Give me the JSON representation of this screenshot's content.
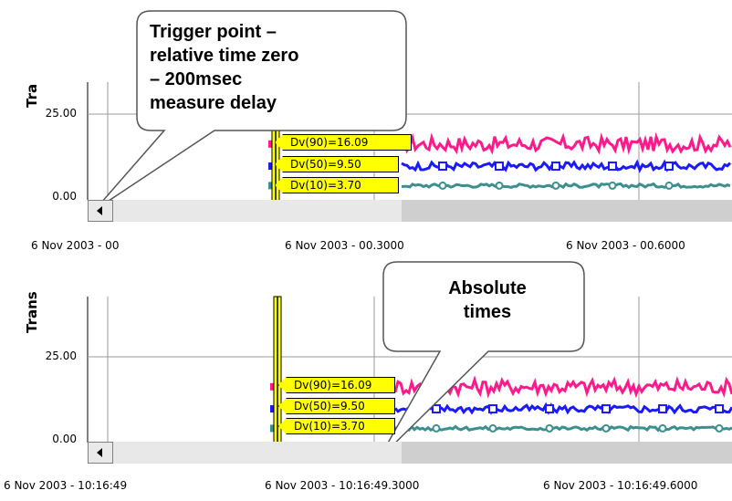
{
  "chart_data": [
    {
      "type": "line",
      "ylabel": "Tra",
      "yticks": [
        "25.00",
        "0.00"
      ],
      "xticks": [
        "6 Nov 2003 - 00",
        "6 Nov 2003 - 00.3000",
        "6 Nov 2003 - 00.6000"
      ],
      "series": [
        {
          "name": "Dv(90)=16.09",
          "value": 16.09,
          "color": "#ff1a8c"
        },
        {
          "name": "Dv(50)=9.50",
          "value": 9.5,
          "color": "#1a1aff"
        },
        {
          "name": "Dv(10)=3.70",
          "value": 3.7,
          "color": "#3d8f8f"
        }
      ],
      "callout": [
        "Trigger point –",
        "relative time zero",
        "– 200msec",
        "measure delay"
      ]
    },
    {
      "type": "line",
      "ylabel": "Trans",
      "yticks": [
        "25.00",
        "0.00"
      ],
      "xticks": [
        "6 Nov 2003 - 10:16:49",
        "6 Nov 2003 - 10:16:49.3000",
        "6 Nov 2003 - 10:16:49.6000"
      ],
      "series": [
        {
          "name": "Dv(90)=16.09",
          "value": 16.09,
          "color": "#ff1a8c"
        },
        {
          "name": "Dv(50)=9.50",
          "value": 9.5,
          "color": "#1a1aff"
        },
        {
          "name": "Dv(10)=3.70",
          "value": 3.7,
          "color": "#3d8f8f"
        }
      ],
      "callout": [
        "Absolute",
        "times"
      ]
    }
  ]
}
